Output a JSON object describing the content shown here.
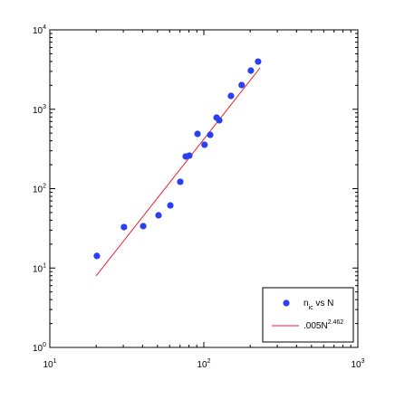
{
  "chart_data": {
    "type": "scatter",
    "xscale": "log",
    "yscale": "log",
    "xlim": [
      10,
      1000
    ],
    "ylim": [
      1,
      10000
    ],
    "xticks": [
      {
        "value": 10,
        "label": "10",
        "exponent": "1"
      },
      {
        "value": 100,
        "label": "10",
        "exponent": "2"
      },
      {
        "value": 1000,
        "label": "10",
        "exponent": "3"
      }
    ],
    "yticks": [
      {
        "value": 1,
        "label": "10",
        "exponent": "0"
      },
      {
        "value": 10,
        "label": "10",
        "exponent": "1"
      },
      {
        "value": 100,
        "label": "10",
        "exponent": "2"
      },
      {
        "value": 1000,
        "label": "10",
        "exponent": "3"
      },
      {
        "value": 10000,
        "label": "10",
        "exponent": "4"
      }
    ],
    "series": [
      {
        "name": "n",
        "name_sub": "ic",
        "name_rest": " vs N",
        "color": "#2a3ff0",
        "x": [
          20.2,
          30.3,
          40.4,
          50.8,
          60.6,
          70.3,
          76.3,
          80.5,
          91,
          101,
          110,
          121,
          126,
          150,
          176,
          202,
          225
        ],
        "values": [
          14.2,
          32.8,
          33.7,
          46.1,
          61.5,
          122,
          254,
          261,
          489,
          357,
          476,
          785,
          725,
          1473,
          2018,
          3069,
          3985
        ]
      }
    ],
    "fit": {
      "name": ".005N",
      "name_sup": "2.462",
      "color": "#e8202a",
      "coefficient": 0.005,
      "exponent": 2.462,
      "xrange": [
        20,
        232
      ]
    },
    "legend": "lower right"
  }
}
